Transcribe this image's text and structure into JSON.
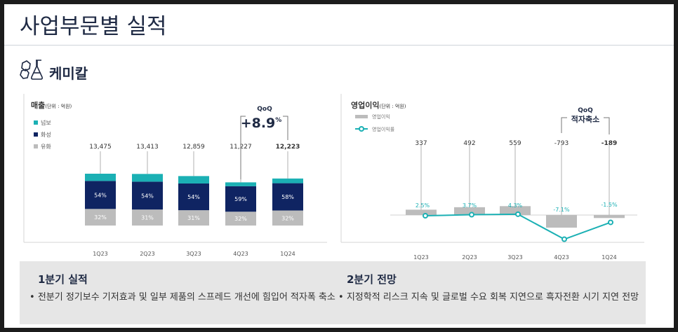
{
  "page": {
    "title": "사업부문별 실적",
    "section": "케미칼",
    "section_icon": "chemistry-flask-icon"
  },
  "colors": {
    "navy": "#0f2462",
    "teal": "#1bb0b4",
    "gray": "#bcbcbc",
    "ink": "#1f2a44"
  },
  "chart_data": [
    {
      "type": "bar",
      "stacked": true,
      "title": "매출",
      "unit_label": "(단위 : 억원)",
      "categories": [
        "1Q23",
        "2Q23",
        "3Q23",
        "4Q23",
        "1Q24"
      ],
      "totals": [
        "13,475",
        "13,413",
        "12,859",
        "11,227",
        "12,223"
      ],
      "total_values": [
        13475,
        13413,
        12859,
        11227,
        12223
      ],
      "series": [
        {
          "name": "유화",
          "color": "#bcbcbc",
          "share_labels": [
            "32%",
            "31%",
            "31%",
            "32%",
            "32%"
          ],
          "shares": [
            32,
            31,
            31,
            32,
            32
          ]
        },
        {
          "name": "화성",
          "color": "#0f2462",
          "share_labels": [
            "54%",
            "54%",
            "54%",
            "59%",
            "58%"
          ],
          "shares": [
            54,
            54,
            54,
            59,
            58
          ]
        },
        {
          "name": "넘보",
          "color": "#1bb0b4",
          "shares": [
            14,
            15,
            15,
            9,
            10
          ]
        }
      ],
      "legend_order": [
        "넘보",
        "화성",
        "유화"
      ],
      "legend_position": "top-left",
      "callout": {
        "label": "QoQ",
        "value": "+8.9",
        "unit": "%"
      }
    },
    {
      "type": "bar+line",
      "title": "영업이익",
      "unit_label": "(단위 : 억원)",
      "categories": [
        "1Q23",
        "2Q23",
        "3Q23",
        "4Q23",
        "1Q24"
      ],
      "bar_series": {
        "name": "영업이익",
        "color": "#bcbcbc",
        "values": [
          337,
          492,
          559,
          -793,
          -189
        ],
        "labels": [
          "337",
          "492",
          "559",
          "-793",
          "-189"
        ]
      },
      "line_series": {
        "name": "영업이익률",
        "color": "#1bb0b4",
        "values": [
          2.5,
          3.7,
          4.3,
          -7.1,
          -1.5
        ],
        "labels": [
          "2.5%",
          "3.7%",
          "4.3%",
          "-7.1%",
          "-1.5%"
        ]
      },
      "legend_position": "top-left",
      "callout": {
        "label": "QoQ",
        "value": "적자축소"
      }
    }
  ],
  "summary": {
    "left": {
      "heading": "1분기 실적",
      "bullet": "전분기 정기보수 기저효과 및  일부 제품의 스프레드 개선에 힘입어 적자폭 축소"
    },
    "right": {
      "heading": "2분기 전망",
      "bullet": "지정학적 리스크 지속 및 글로벌 수요 회복 지연으로 흑자전환 시기 지연 전망"
    }
  }
}
